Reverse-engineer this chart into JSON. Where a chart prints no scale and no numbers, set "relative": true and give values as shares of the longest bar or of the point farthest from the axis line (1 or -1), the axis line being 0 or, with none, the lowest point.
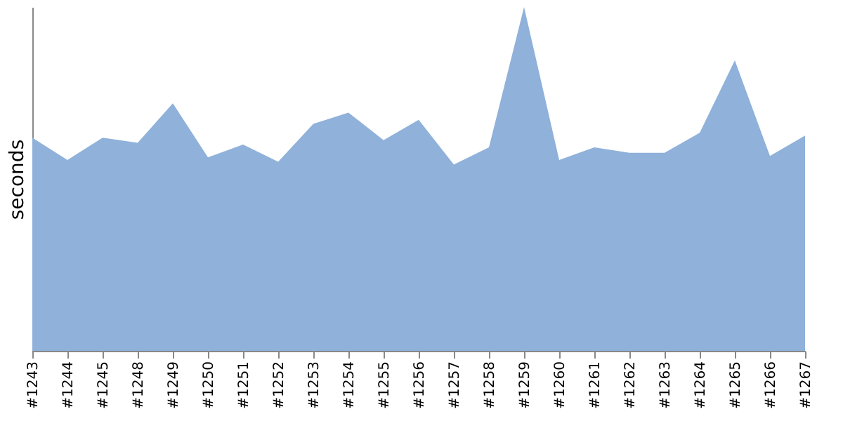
{
  "chart_data": {
    "type": "area",
    "ylabel": "seconds",
    "relative": true,
    "grid": false,
    "categories": [
      "#1243",
      "#1244",
      "#1245",
      "#1248",
      "#1249",
      "#1250",
      "#1251",
      "#1252",
      "#1253",
      "#1254",
      "#1255",
      "#1256",
      "#1257",
      "#1258",
      "#1259",
      "#1260",
      "#1261",
      "#1262",
      "#1263",
      "#1264",
      "#1265",
      "#1266",
      "#1267"
    ],
    "series": [
      {
        "color": "#8fb1da",
        "values": [
          0.62,
          0.555,
          0.62,
          0.605,
          0.72,
          0.563,
          0.6,
          0.55,
          0.66,
          0.693,
          0.613,
          0.672,
          0.542,
          0.592,
          1,
          0.555,
          0.592,
          0.576,
          0.576,
          0.634,
          0.845,
          0.567,
          0.626
        ]
      }
    ]
  }
}
